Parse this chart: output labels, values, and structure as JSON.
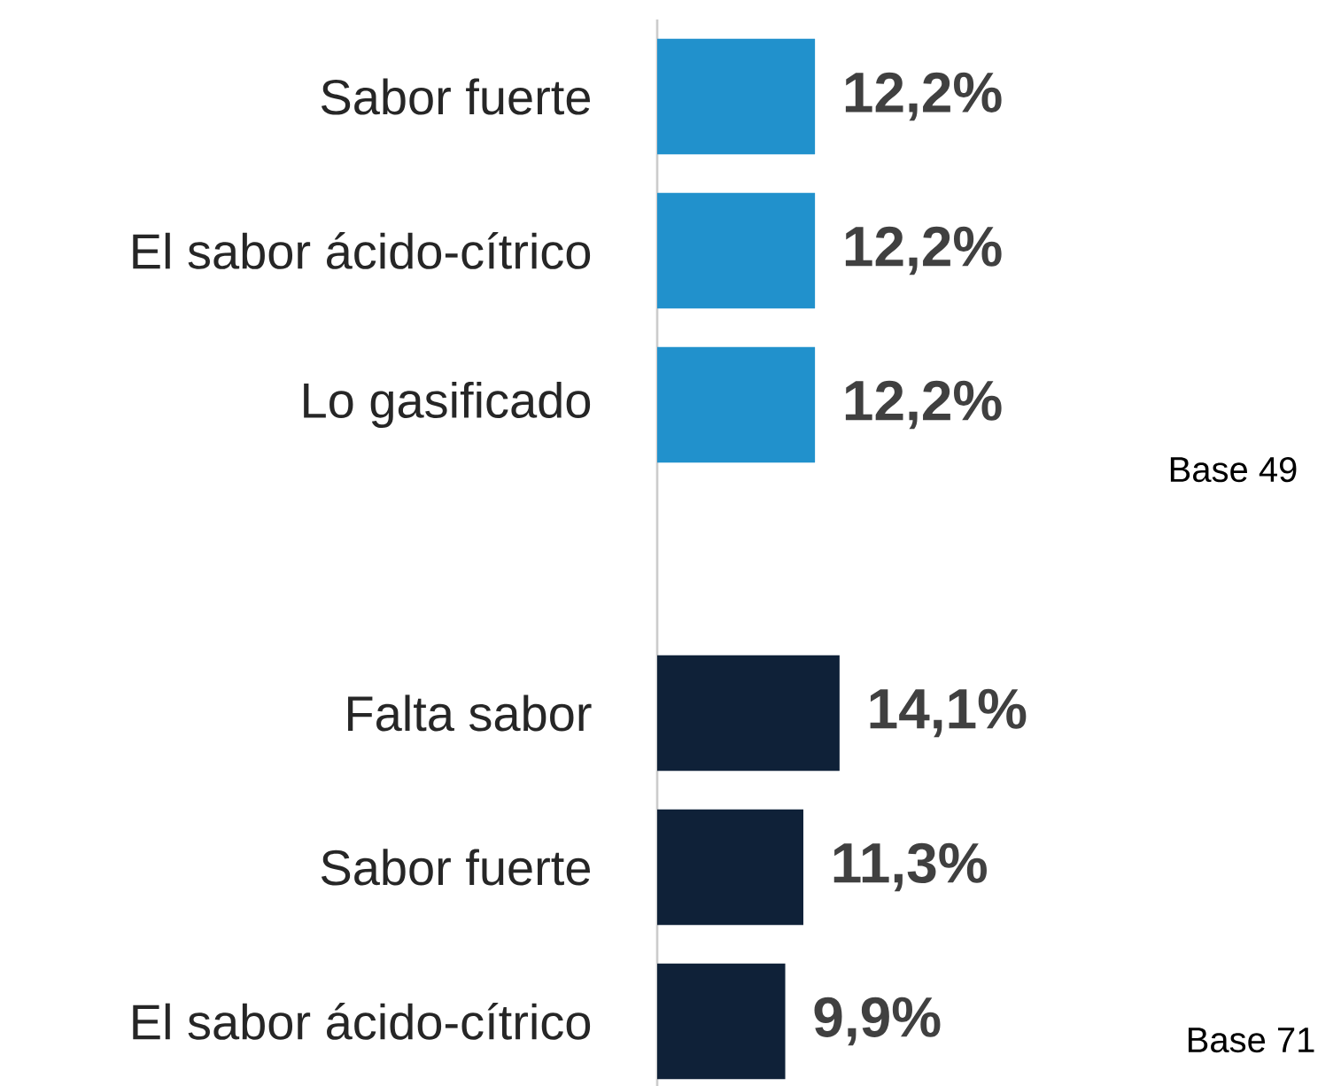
{
  "chart_data": {
    "type": "bar",
    "orientation": "horizontal",
    "categories": [
      "Sabor fuerte",
      "El sabor ácido-cítrico",
      "Lo gasificado",
      null,
      "Falta sabor",
      "Sabor fuerte",
      "El sabor ácido-cítrico"
    ],
    "values": [
      12.2,
      12.2,
      12.2,
      null,
      14.1,
      11.3,
      9.9
    ],
    "value_labels": [
      "12,2%",
      "12,2%",
      "12,2%",
      null,
      "14,1%",
      "11,3%",
      "9,9%"
    ],
    "colors": [
      "#2191cc",
      "#2191cc",
      "#2191cc",
      null,
      "#0f2138",
      "#0f2138",
      "#0f2138"
    ],
    "annotations": [
      "Base 49",
      "Base 71"
    ]
  }
}
